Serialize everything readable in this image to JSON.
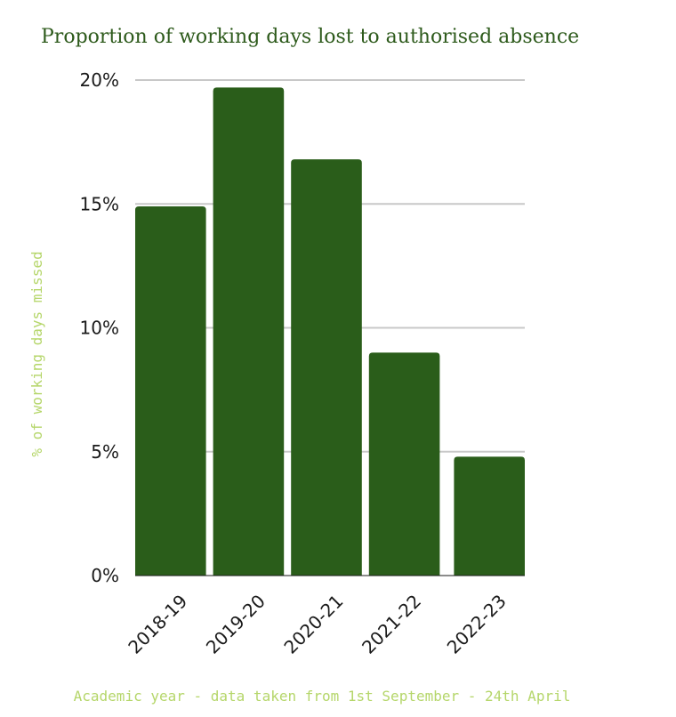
{
  "chart_data": {
    "type": "bar",
    "title": "Proportion of working days lost to authorised absence",
    "xlabel": "Academic year - data taken from 1st September - 24th April",
    "ylabel": "% of working days missed",
    "categories": [
      "2018-19",
      "2019-20",
      "2020-21",
      "2021-22",
      "2022-23"
    ],
    "values": [
      14.9,
      19.7,
      16.8,
      9.0,
      4.8
    ],
    "ylim": [
      0,
      20
    ],
    "yticks": [
      0,
      5,
      10,
      15,
      20
    ],
    "ytick_labels": [
      "0%",
      "5%",
      "10%",
      "15%",
      "20%"
    ],
    "grid": true,
    "legend": "none"
  },
  "colors": {
    "bar": "#2a5d1a",
    "title": "#2d5a1b",
    "axis_label": "#b5d66a",
    "grid": "#c8c8c8",
    "tick": "#1a1a1a"
  }
}
